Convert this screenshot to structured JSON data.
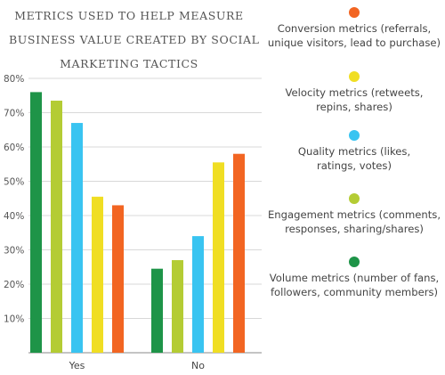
{
  "title_lines": [
    "METRICS USED TO HELP MEASURE",
    "BUSINESS VALUE CREATED BY SOCIAL",
    "MARKETING TACTICS"
  ],
  "colors": {
    "volume": "#1e9448",
    "engagement": "#b4cc34",
    "quality": "#39c4f1",
    "velocity": "#f0de23",
    "conversion": "#f26522"
  },
  "legend": [
    {
      "label_lines": [
        "Conversion metrics (referrals,",
        "unique visitors, lead to purchase)"
      ],
      "color": "#f26522"
    },
    {
      "label_lines": [
        "Velocity metrics (retweets,",
        "repins, shares)"
      ],
      "color": "#f0de23"
    },
    {
      "label_lines": [
        "Quality metrics (likes,",
        "ratings, votes)"
      ],
      "color": "#39c4f1"
    },
    {
      "label_lines": [
        "Engagement metrics (comments,",
        "responses, sharing/shares)"
      ],
      "color": "#b4cc34"
    },
    {
      "label_lines": [
        "Volume metrics (number of fans,",
        "followers, community members)"
      ],
      "color": "#1e9448"
    }
  ],
  "chart_data": {
    "type": "bar",
    "title": "METRICS USED TO HELP MEASURE BUSINESS VALUE CREATED BY SOCIAL MARKETING TACTICS",
    "categories": [
      "Yes",
      "No"
    ],
    "series": [
      {
        "name": "Volume metrics (number of fans, followers, community members)",
        "color": "#1e9448",
        "values": [
          76,
          24.5
        ]
      },
      {
        "name": "Engagement metrics (comments, responses, sharing/shares)",
        "color": "#b4cc34",
        "values": [
          73.5,
          27
        ]
      },
      {
        "name": "Quality metrics (likes, ratings, votes)",
        "color": "#39c4f1",
        "values": [
          67,
          34
        ]
      },
      {
        "name": "Velocity metrics (retweets, repins, shares)",
        "color": "#f0de23",
        "values": [
          45.5,
          55.5
        ]
      },
      {
        "name": "Conversion metrics (referrals, unique visitors, lead to purchase)",
        "color": "#f26522",
        "values": [
          43,
          58
        ]
      }
    ],
    "ylim": [
      0,
      80
    ],
    "yticks": [
      10,
      20,
      30,
      40,
      50,
      60,
      70,
      80
    ],
    "ytick_labels": [
      "10%",
      "20%",
      "30%",
      "40%",
      "50%",
      "60%",
      "70%",
      "80%"
    ],
    "xlabel": "",
    "ylabel": "",
    "grid": true,
    "legend_position": "right"
  }
}
